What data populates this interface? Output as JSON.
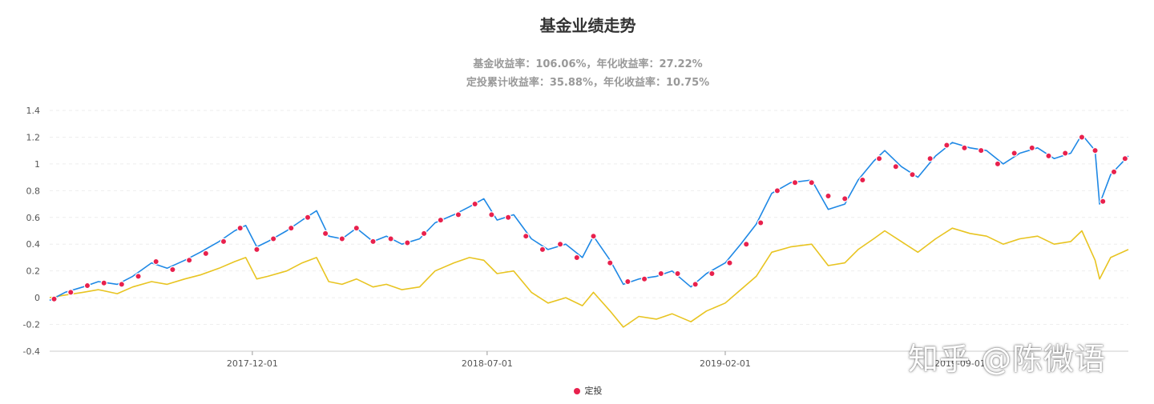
{
  "chart_data": {
    "type": "line",
    "title": "基金业绩走势",
    "subtitle": [
      "基金收益率：106.06%，年化收益率：27.22%",
      "定投累计收益率：35.88%，年化收益率：10.75%"
    ],
    "ylim": [
      -0.4,
      1.4
    ],
    "yticks": [
      -0.4,
      -0.2,
      0,
      0.2,
      0.4,
      0.6,
      0.8,
      1,
      1.2,
      1.4
    ],
    "yticks_labels": [
      "-0.4",
      "-0.2",
      "0",
      "0.2",
      "0.4",
      "0.6",
      "0.8",
      "1",
      "1.2",
      "1.4"
    ],
    "xlim": [
      "2017-06-01",
      "2020-01-31"
    ],
    "xticks": [
      "2017-12-01",
      "2018-07-01",
      "2019-02-01",
      "2019-09-01"
    ],
    "grid": "horizontal-dashed",
    "legend": {
      "position": "bottom-center",
      "entries": [
        "定投"
      ]
    },
    "colors": {
      "fund": "#1e88e5",
      "plan": "#e8c421",
      "marker": "#e8214d"
    },
    "series": [
      {
        "key": "fund",
        "style": "line",
        "points": [
          [
            "2017-06-01",
            -0.02
          ],
          [
            "2017-06-15",
            0.04
          ],
          [
            "2017-07-01",
            0.08
          ],
          [
            "2017-07-15",
            0.12
          ],
          [
            "2017-08-01",
            0.1
          ],
          [
            "2017-08-15",
            0.16
          ],
          [
            "2017-09-01",
            0.26
          ],
          [
            "2017-09-15",
            0.22
          ],
          [
            "2017-10-01",
            0.28
          ],
          [
            "2017-10-15",
            0.34
          ],
          [
            "2017-11-01",
            0.42
          ],
          [
            "2017-11-15",
            0.5
          ],
          [
            "2017-11-25",
            0.54
          ],
          [
            "2017-12-05",
            0.38
          ],
          [
            "2017-12-15",
            0.42
          ],
          [
            "2018-01-01",
            0.5
          ],
          [
            "2018-01-15",
            0.58
          ],
          [
            "2018-01-28",
            0.65
          ],
          [
            "2018-02-08",
            0.46
          ],
          [
            "2018-02-20",
            0.44
          ],
          [
            "2018-03-05",
            0.52
          ],
          [
            "2018-03-20",
            0.42
          ],
          [
            "2018-04-01",
            0.46
          ],
          [
            "2018-04-15",
            0.4
          ],
          [
            "2018-05-01",
            0.44
          ],
          [
            "2018-05-15",
            0.56
          ],
          [
            "2018-06-01",
            0.62
          ],
          [
            "2018-06-15",
            0.68
          ],
          [
            "2018-06-28",
            0.74
          ],
          [
            "2018-07-10",
            0.58
          ],
          [
            "2018-07-25",
            0.62
          ],
          [
            "2018-08-10",
            0.44
          ],
          [
            "2018-08-25",
            0.36
          ],
          [
            "2018-09-10",
            0.4
          ],
          [
            "2018-09-25",
            0.3
          ],
          [
            "2018-10-05",
            0.46
          ],
          [
            "2018-10-20",
            0.28
          ],
          [
            "2018-11-01",
            0.1
          ],
          [
            "2018-11-15",
            0.14
          ],
          [
            "2018-12-01",
            0.16
          ],
          [
            "2018-12-15",
            0.2
          ],
          [
            "2019-01-01",
            0.08
          ],
          [
            "2019-01-15",
            0.18
          ],
          [
            "2019-02-01",
            0.26
          ],
          [
            "2019-02-15",
            0.4
          ],
          [
            "2019-03-01",
            0.55
          ],
          [
            "2019-03-15",
            0.78
          ],
          [
            "2019-04-01",
            0.86
          ],
          [
            "2019-04-20",
            0.88
          ],
          [
            "2019-05-05",
            0.66
          ],
          [
            "2019-05-20",
            0.7
          ],
          [
            "2019-06-01",
            0.88
          ],
          [
            "2019-06-15",
            1.02
          ],
          [
            "2019-06-25",
            1.1
          ],
          [
            "2019-07-10",
            0.98
          ],
          [
            "2019-07-25",
            0.9
          ],
          [
            "2019-08-10",
            1.06
          ],
          [
            "2019-08-25",
            1.16
          ],
          [
            "2019-09-10",
            1.12
          ],
          [
            "2019-09-25",
            1.1
          ],
          [
            "2019-10-10",
            1.0
          ],
          [
            "2019-10-25",
            1.08
          ],
          [
            "2019-11-10",
            1.12
          ],
          [
            "2019-11-25",
            1.04
          ],
          [
            "2019-12-10",
            1.08
          ],
          [
            "2019-12-20",
            1.22
          ],
          [
            "2020-01-01",
            1.1
          ],
          [
            "2020-01-05",
            0.7
          ],
          [
            "2020-01-15",
            0.92
          ],
          [
            "2020-01-31",
            1.06
          ]
        ]
      },
      {
        "key": "plan",
        "style": "line",
        "points": [
          [
            "2017-06-01",
            0.0
          ],
          [
            "2017-06-15",
            0.02
          ],
          [
            "2017-07-01",
            0.04
          ],
          [
            "2017-07-15",
            0.06
          ],
          [
            "2017-08-01",
            0.03
          ],
          [
            "2017-08-15",
            0.08
          ],
          [
            "2017-09-01",
            0.12
          ],
          [
            "2017-09-15",
            0.1
          ],
          [
            "2017-10-01",
            0.14
          ],
          [
            "2017-10-15",
            0.17
          ],
          [
            "2017-11-01",
            0.22
          ],
          [
            "2017-11-15",
            0.27
          ],
          [
            "2017-11-25",
            0.3
          ],
          [
            "2017-12-05",
            0.14
          ],
          [
            "2017-12-15",
            0.16
          ],
          [
            "2018-01-01",
            0.2
          ],
          [
            "2018-01-15",
            0.26
          ],
          [
            "2018-01-28",
            0.3
          ],
          [
            "2018-02-08",
            0.12
          ],
          [
            "2018-02-20",
            0.1
          ],
          [
            "2018-03-05",
            0.14
          ],
          [
            "2018-03-20",
            0.08
          ],
          [
            "2018-04-01",
            0.1
          ],
          [
            "2018-04-15",
            0.06
          ],
          [
            "2018-05-01",
            0.08
          ],
          [
            "2018-05-15",
            0.2
          ],
          [
            "2018-06-01",
            0.26
          ],
          [
            "2018-06-15",
            0.3
          ],
          [
            "2018-06-28",
            0.28
          ],
          [
            "2018-07-10",
            0.18
          ],
          [
            "2018-07-25",
            0.2
          ],
          [
            "2018-08-10",
            0.04
          ],
          [
            "2018-08-25",
            -0.04
          ],
          [
            "2018-09-10",
            0.0
          ],
          [
            "2018-09-25",
            -0.06
          ],
          [
            "2018-10-05",
            0.04
          ],
          [
            "2018-10-20",
            -0.1
          ],
          [
            "2018-11-01",
            -0.22
          ],
          [
            "2018-11-15",
            -0.14
          ],
          [
            "2018-12-01",
            -0.16
          ],
          [
            "2018-12-15",
            -0.12
          ],
          [
            "2019-01-01",
            -0.18
          ],
          [
            "2019-01-15",
            -0.1
          ],
          [
            "2019-02-01",
            -0.04
          ],
          [
            "2019-02-15",
            0.06
          ],
          [
            "2019-03-01",
            0.16
          ],
          [
            "2019-03-15",
            0.34
          ],
          [
            "2019-04-01",
            0.38
          ],
          [
            "2019-04-20",
            0.4
          ],
          [
            "2019-05-05",
            0.24
          ],
          [
            "2019-05-20",
            0.26
          ],
          [
            "2019-06-01",
            0.36
          ],
          [
            "2019-06-15",
            0.44
          ],
          [
            "2019-06-25",
            0.5
          ],
          [
            "2019-07-10",
            0.42
          ],
          [
            "2019-07-25",
            0.34
          ],
          [
            "2019-08-10",
            0.44
          ],
          [
            "2019-08-25",
            0.52
          ],
          [
            "2019-09-10",
            0.48
          ],
          [
            "2019-09-25",
            0.46
          ],
          [
            "2019-10-10",
            0.4
          ],
          [
            "2019-10-25",
            0.44
          ],
          [
            "2019-11-10",
            0.46
          ],
          [
            "2019-11-25",
            0.4
          ],
          [
            "2019-12-10",
            0.42
          ],
          [
            "2019-12-20",
            0.5
          ],
          [
            "2020-01-01",
            0.28
          ],
          [
            "2020-01-05",
            0.14
          ],
          [
            "2020-01-15",
            0.3
          ],
          [
            "2020-01-31",
            0.36
          ]
        ]
      },
      {
        "key": "marker",
        "name": "定投",
        "style": "scatter",
        "points": [
          [
            "2017-06-05",
            -0.01
          ],
          [
            "2017-06-20",
            0.04
          ],
          [
            "2017-07-05",
            0.09
          ],
          [
            "2017-07-20",
            0.11
          ],
          [
            "2017-08-05",
            0.1
          ],
          [
            "2017-08-20",
            0.16
          ],
          [
            "2017-09-05",
            0.27
          ],
          [
            "2017-09-20",
            0.21
          ],
          [
            "2017-10-05",
            0.28
          ],
          [
            "2017-10-20",
            0.33
          ],
          [
            "2017-11-05",
            0.42
          ],
          [
            "2017-11-20",
            0.52
          ],
          [
            "2017-12-05",
            0.36
          ],
          [
            "2017-12-20",
            0.44
          ],
          [
            "2018-01-05",
            0.52
          ],
          [
            "2018-01-20",
            0.6
          ],
          [
            "2018-02-05",
            0.48
          ],
          [
            "2018-02-20",
            0.44
          ],
          [
            "2018-03-05",
            0.52
          ],
          [
            "2018-03-20",
            0.42
          ],
          [
            "2018-04-05",
            0.44
          ],
          [
            "2018-04-20",
            0.41
          ],
          [
            "2018-05-05",
            0.48
          ],
          [
            "2018-05-20",
            0.58
          ],
          [
            "2018-06-05",
            0.62
          ],
          [
            "2018-06-20",
            0.7
          ],
          [
            "2018-07-05",
            0.62
          ],
          [
            "2018-07-20",
            0.6
          ],
          [
            "2018-08-05",
            0.46
          ],
          [
            "2018-08-20",
            0.36
          ],
          [
            "2018-09-05",
            0.4
          ],
          [
            "2018-09-20",
            0.3
          ],
          [
            "2018-10-05",
            0.46
          ],
          [
            "2018-10-20",
            0.26
          ],
          [
            "2018-11-05",
            0.12
          ],
          [
            "2018-11-20",
            0.14
          ],
          [
            "2018-12-05",
            0.18
          ],
          [
            "2018-12-20",
            0.18
          ],
          [
            "2019-01-05",
            0.1
          ],
          [
            "2019-01-20",
            0.18
          ],
          [
            "2019-02-05",
            0.26
          ],
          [
            "2019-02-20",
            0.4
          ],
          [
            "2019-03-05",
            0.56
          ],
          [
            "2019-03-20",
            0.8
          ],
          [
            "2019-04-05",
            0.86
          ],
          [
            "2019-04-20",
            0.86
          ],
          [
            "2019-05-05",
            0.76
          ],
          [
            "2019-05-20",
            0.74
          ],
          [
            "2019-06-05",
            0.88
          ],
          [
            "2019-06-20",
            1.04
          ],
          [
            "2019-07-05",
            0.98
          ],
          [
            "2019-07-20",
            0.92
          ],
          [
            "2019-08-05",
            1.04
          ],
          [
            "2019-08-20",
            1.14
          ],
          [
            "2019-09-05",
            1.12
          ],
          [
            "2019-09-20",
            1.1
          ],
          [
            "2019-10-05",
            1.0
          ],
          [
            "2019-10-20",
            1.08
          ],
          [
            "2019-11-05",
            1.12
          ],
          [
            "2019-11-20",
            1.06
          ],
          [
            "2019-12-05",
            1.08
          ],
          [
            "2019-12-20",
            1.2
          ],
          [
            "2020-01-01",
            1.1
          ],
          [
            "2020-01-08",
            0.72
          ],
          [
            "2020-01-18",
            0.94
          ],
          [
            "2020-01-28",
            1.04
          ]
        ]
      }
    ]
  },
  "watermark": "知乎 @陈微语"
}
